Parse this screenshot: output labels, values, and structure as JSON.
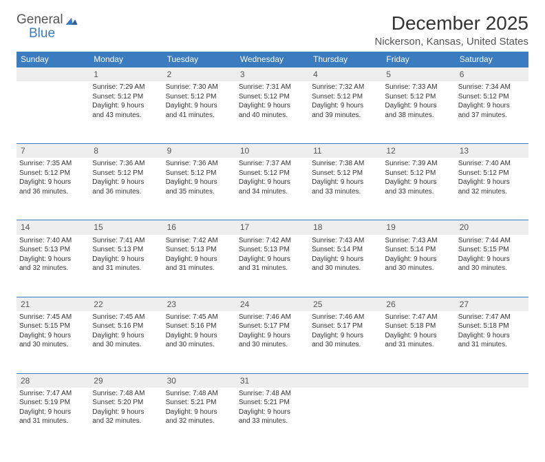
{
  "brand": {
    "part1": "General",
    "part2": "Blue",
    "accent": "#3b7bbf",
    "textcolor": "#555555"
  },
  "title": "December 2025",
  "location": "Nickerson, Kansas, United States",
  "header_bg": "#3b7bbf",
  "daynum_bg": "#eeeeee",
  "divider": "#3b7bbf",
  "dows": [
    "Sunday",
    "Monday",
    "Tuesday",
    "Wednesday",
    "Thursday",
    "Friday",
    "Saturday"
  ],
  "weeks": [
    {
      "nums": [
        "",
        "1",
        "2",
        "3",
        "4",
        "5",
        "6"
      ],
      "cells": [
        {
          "lines": []
        },
        {
          "lines": [
            "Sunrise: 7:29 AM",
            "Sunset: 5:12 PM",
            "Daylight: 9 hours",
            "and 43 minutes."
          ]
        },
        {
          "lines": [
            "Sunrise: 7:30 AM",
            "Sunset: 5:12 PM",
            "Daylight: 9 hours",
            "and 41 minutes."
          ]
        },
        {
          "lines": [
            "Sunrise: 7:31 AM",
            "Sunset: 5:12 PM",
            "Daylight: 9 hours",
            "and 40 minutes."
          ]
        },
        {
          "lines": [
            "Sunrise: 7:32 AM",
            "Sunset: 5:12 PM",
            "Daylight: 9 hours",
            "and 39 minutes."
          ]
        },
        {
          "lines": [
            "Sunrise: 7:33 AM",
            "Sunset: 5:12 PM",
            "Daylight: 9 hours",
            "and 38 minutes."
          ]
        },
        {
          "lines": [
            "Sunrise: 7:34 AM",
            "Sunset: 5:12 PM",
            "Daylight: 9 hours",
            "and 37 minutes."
          ]
        }
      ]
    },
    {
      "nums": [
        "7",
        "8",
        "9",
        "10",
        "11",
        "12",
        "13"
      ],
      "cells": [
        {
          "lines": [
            "Sunrise: 7:35 AM",
            "Sunset: 5:12 PM",
            "Daylight: 9 hours",
            "and 36 minutes."
          ]
        },
        {
          "lines": [
            "Sunrise: 7:36 AM",
            "Sunset: 5:12 PM",
            "Daylight: 9 hours",
            "and 36 minutes."
          ]
        },
        {
          "lines": [
            "Sunrise: 7:36 AM",
            "Sunset: 5:12 PM",
            "Daylight: 9 hours",
            "and 35 minutes."
          ]
        },
        {
          "lines": [
            "Sunrise: 7:37 AM",
            "Sunset: 5:12 PM",
            "Daylight: 9 hours",
            "and 34 minutes."
          ]
        },
        {
          "lines": [
            "Sunrise: 7:38 AM",
            "Sunset: 5:12 PM",
            "Daylight: 9 hours",
            "and 33 minutes."
          ]
        },
        {
          "lines": [
            "Sunrise: 7:39 AM",
            "Sunset: 5:12 PM",
            "Daylight: 9 hours",
            "and 33 minutes."
          ]
        },
        {
          "lines": [
            "Sunrise: 7:40 AM",
            "Sunset: 5:12 PM",
            "Daylight: 9 hours",
            "and 32 minutes."
          ]
        }
      ]
    },
    {
      "nums": [
        "14",
        "15",
        "16",
        "17",
        "18",
        "19",
        "20"
      ],
      "cells": [
        {
          "lines": [
            "Sunrise: 7:40 AM",
            "Sunset: 5:13 PM",
            "Daylight: 9 hours",
            "and 32 minutes."
          ]
        },
        {
          "lines": [
            "Sunrise: 7:41 AM",
            "Sunset: 5:13 PM",
            "Daylight: 9 hours",
            "and 31 minutes."
          ]
        },
        {
          "lines": [
            "Sunrise: 7:42 AM",
            "Sunset: 5:13 PM",
            "Daylight: 9 hours",
            "and 31 minutes."
          ]
        },
        {
          "lines": [
            "Sunrise: 7:42 AM",
            "Sunset: 5:13 PM",
            "Daylight: 9 hours",
            "and 31 minutes."
          ]
        },
        {
          "lines": [
            "Sunrise: 7:43 AM",
            "Sunset: 5:14 PM",
            "Daylight: 9 hours",
            "and 30 minutes."
          ]
        },
        {
          "lines": [
            "Sunrise: 7:43 AM",
            "Sunset: 5:14 PM",
            "Daylight: 9 hours",
            "and 30 minutes."
          ]
        },
        {
          "lines": [
            "Sunrise: 7:44 AM",
            "Sunset: 5:15 PM",
            "Daylight: 9 hours",
            "and 30 minutes."
          ]
        }
      ]
    },
    {
      "nums": [
        "21",
        "22",
        "23",
        "24",
        "25",
        "26",
        "27"
      ],
      "cells": [
        {
          "lines": [
            "Sunrise: 7:45 AM",
            "Sunset: 5:15 PM",
            "Daylight: 9 hours",
            "and 30 minutes."
          ]
        },
        {
          "lines": [
            "Sunrise: 7:45 AM",
            "Sunset: 5:16 PM",
            "Daylight: 9 hours",
            "and 30 minutes."
          ]
        },
        {
          "lines": [
            "Sunrise: 7:45 AM",
            "Sunset: 5:16 PM",
            "Daylight: 9 hours",
            "and 30 minutes."
          ]
        },
        {
          "lines": [
            "Sunrise: 7:46 AM",
            "Sunset: 5:17 PM",
            "Daylight: 9 hours",
            "and 30 minutes."
          ]
        },
        {
          "lines": [
            "Sunrise: 7:46 AM",
            "Sunset: 5:17 PM",
            "Daylight: 9 hours",
            "and 30 minutes."
          ]
        },
        {
          "lines": [
            "Sunrise: 7:47 AM",
            "Sunset: 5:18 PM",
            "Daylight: 9 hours",
            "and 31 minutes."
          ]
        },
        {
          "lines": [
            "Sunrise: 7:47 AM",
            "Sunset: 5:18 PM",
            "Daylight: 9 hours",
            "and 31 minutes."
          ]
        }
      ]
    },
    {
      "nums": [
        "28",
        "29",
        "30",
        "31",
        "",
        "",
        ""
      ],
      "cells": [
        {
          "lines": [
            "Sunrise: 7:47 AM",
            "Sunset: 5:19 PM",
            "Daylight: 9 hours",
            "and 31 minutes."
          ]
        },
        {
          "lines": [
            "Sunrise: 7:48 AM",
            "Sunset: 5:20 PM",
            "Daylight: 9 hours",
            "and 32 minutes."
          ]
        },
        {
          "lines": [
            "Sunrise: 7:48 AM",
            "Sunset: 5:21 PM",
            "Daylight: 9 hours",
            "and 32 minutes."
          ]
        },
        {
          "lines": [
            "Sunrise: 7:48 AM",
            "Sunset: 5:21 PM",
            "Daylight: 9 hours",
            "and 33 minutes."
          ]
        },
        {
          "lines": []
        },
        {
          "lines": []
        },
        {
          "lines": []
        }
      ]
    }
  ]
}
